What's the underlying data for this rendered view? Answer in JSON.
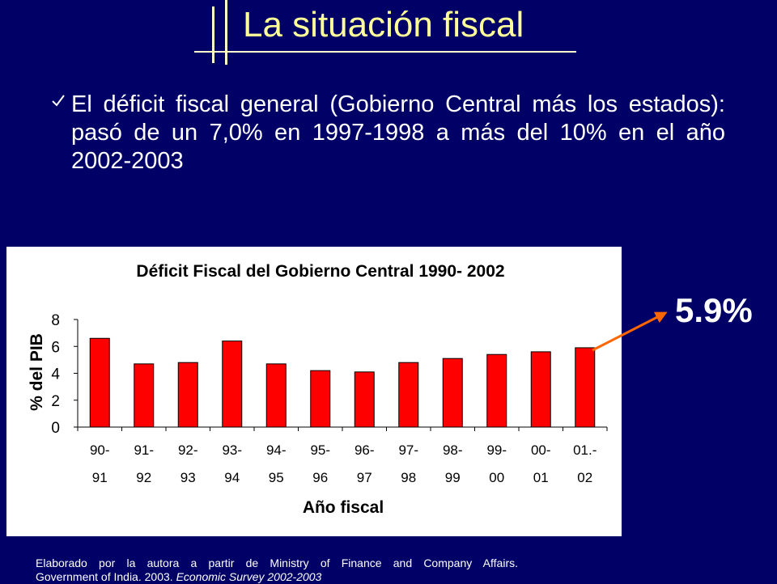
{
  "slide": {
    "title": "La situación fiscal",
    "bullet": "El déficit fiscal general (Gobierno Central más los estados): pasó de un 7,0% en 1997-1998 a más del 10% en el año 2002-2003",
    "callout": "5.9%",
    "source_line1": "Elaborado por la autora a partir de Ministry of Finance and Company Affairs.",
    "source_line2_prefix": "Government of India. 2003. ",
    "source_line2_italic": "Economic Survey 2002-2003",
    "colors": {
      "background": "#000066",
      "title": "#ffff99",
      "bar": "#ff0000",
      "arrow": "#ff6600"
    }
  },
  "chart_data": {
    "type": "bar",
    "title": "Déficit Fiscal del Gobierno Central 1990- 2002",
    "xlabel": "Año fiscal",
    "ylabel": "% del PIB",
    "categories": [
      "90-\n91",
      "91-\n92",
      "92-\n93",
      "93-\n94",
      "94-\n95",
      "95-\n96",
      "96-\n97",
      "97-\n98",
      "98-\n99",
      "99-\n00",
      "00-\n01",
      "01.-\n02"
    ],
    "values": [
      6.6,
      4.7,
      4.8,
      6.4,
      4.7,
      4.2,
      4.1,
      4.8,
      5.1,
      5.4,
      5.6,
      5.9
    ],
    "ylim": [
      0,
      8
    ],
    "yticks": [
      0,
      2,
      4,
      6,
      8
    ],
    "grid": false,
    "legend": "none"
  }
}
